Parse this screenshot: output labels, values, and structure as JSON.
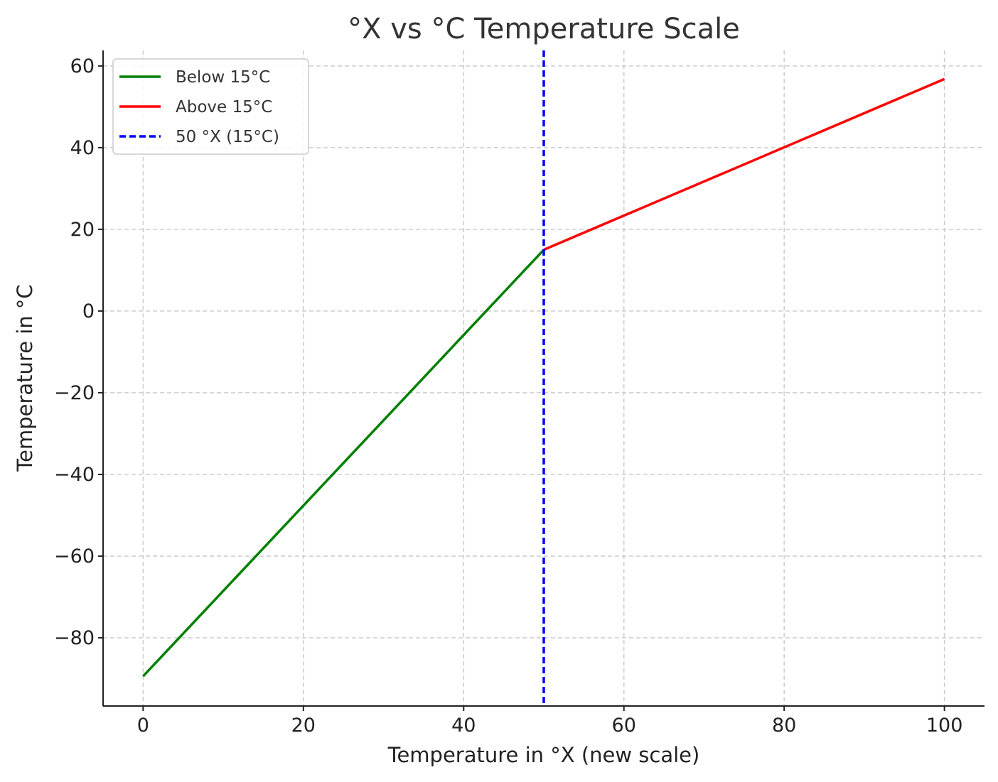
{
  "chart_data": {
    "type": "line",
    "title": "°X vs °C Temperature Scale",
    "xlabel": "Temperature in °X (new scale)",
    "ylabel": "Temperature in °C",
    "xlim": [
      -5,
      105
    ],
    "ylim": [
      -96.7,
      63.8
    ],
    "xticks": [
      0,
      20,
      40,
      60,
      80,
      100
    ],
    "yticks": [
      -80,
      -60,
      -40,
      -20,
      0,
      20,
      40,
      60
    ],
    "ytick_labels": [
      "−80",
      "−60",
      "−40",
      "−20",
      "0",
      "20",
      "40",
      "60"
    ],
    "grid": true,
    "legend_position": "top-left",
    "series": [
      {
        "name": "Below 15°C",
        "color": "#008000",
        "style": "solid",
        "x": [
          0,
          50
        ],
        "y": [
          -89.4,
          15
        ]
      },
      {
        "name": "Above 15°C",
        "color": "#ff0000",
        "style": "solid",
        "x": [
          50,
          100
        ],
        "y": [
          15,
          56.8
        ]
      },
      {
        "name": "50 °X (15°C)",
        "color": "#0000ff",
        "style": "dashed",
        "vline_x": 50
      }
    ]
  }
}
